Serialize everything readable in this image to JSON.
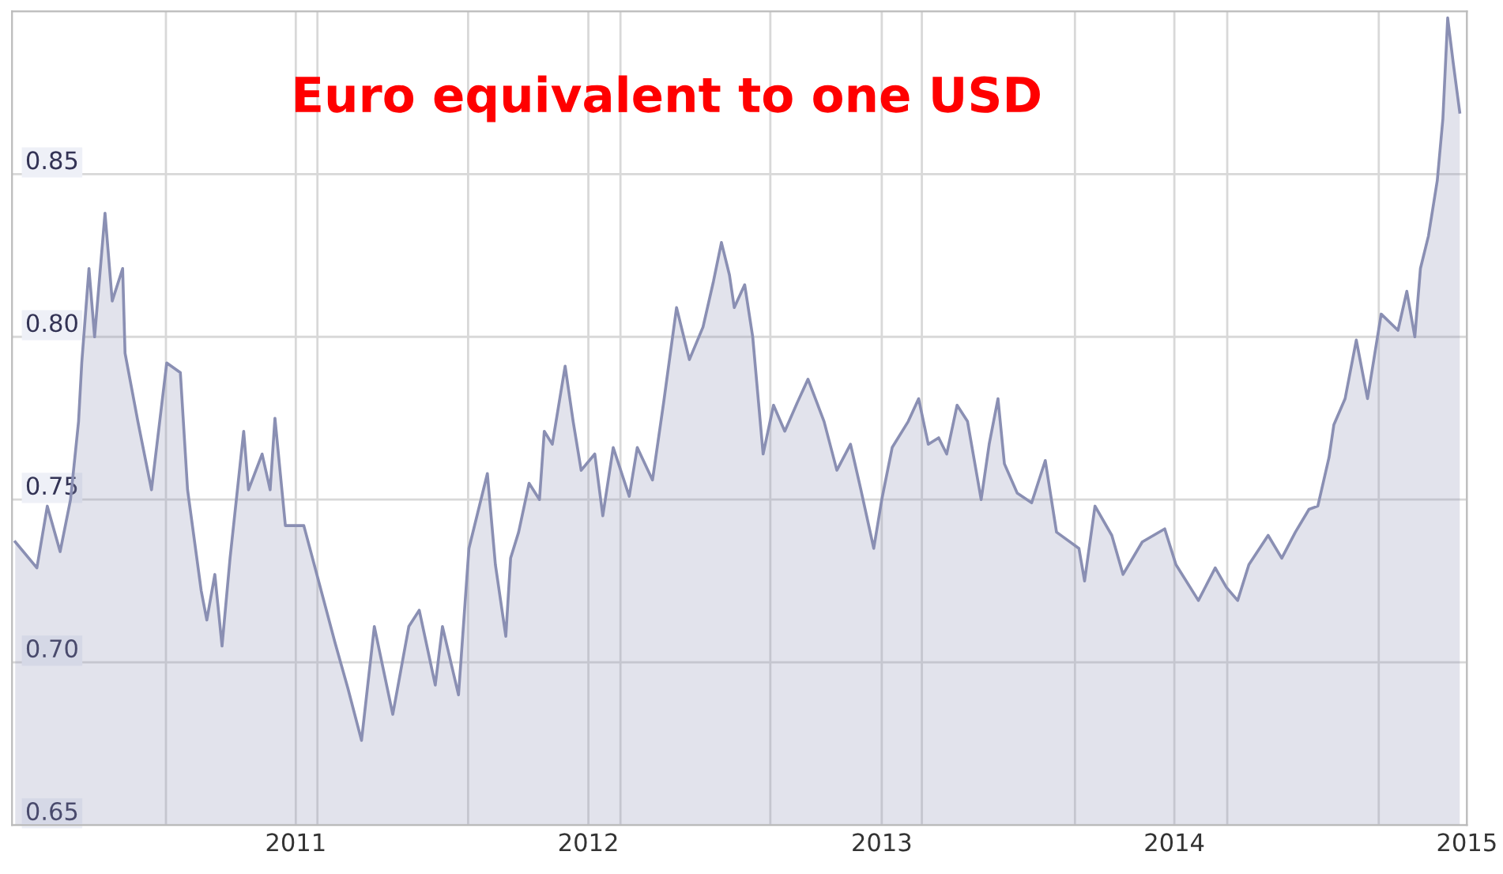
{
  "chart_data": {
    "type": "area",
    "title": "Euro equivalent to one USD",
    "x": [
      "2010-01-16",
      "2010-02-12",
      "2010-02-25",
      "2010-03-13",
      "2010-03-26",
      "2010-04-05",
      "2010-04-09",
      "2010-04-18",
      "2010-04-25",
      "2010-05-08",
      "2010-05-17",
      "2010-05-30",
      "2010-06-02",
      "2010-06-18",
      "2010-07-05",
      "2010-07-24",
      "2010-08-10",
      "2010-08-19",
      "2010-09-05",
      "2010-09-12",
      "2010-09-22",
      "2010-10-01",
      "2010-10-11",
      "2010-10-28",
      "2010-11-03",
      "2010-11-20",
      "2010-11-30",
      "2010-12-06",
      "2010-12-19",
      "2011-01-11",
      "2011-01-24",
      "2011-02-19",
      "2011-03-07",
      "2011-03-24",
      "2011-04-09",
      "2011-05-02",
      "2011-05-22",
      "2011-06-04",
      "2011-06-24",
      "2011-07-03",
      "2011-07-23",
      "2011-08-05",
      "2011-08-28",
      "2011-09-07",
      "2011-09-20",
      "2011-09-26",
      "2011-10-06",
      "2011-10-19",
      "2011-11-01",
      "2011-11-07",
      "2011-11-17",
      "2011-12-03",
      "2011-12-13",
      "2011-12-23",
      "2012-01-09",
      "2012-01-19",
      "2012-02-01",
      "2012-02-21",
      "2012-03-02",
      "2012-03-21",
      "2012-04-04",
      "2012-04-20",
      "2012-05-06",
      "2012-05-23",
      "2012-06-05",
      "2012-06-15",
      "2012-06-25",
      "2012-07-01",
      "2012-07-14",
      "2012-07-24",
      "2012-08-06",
      "2012-08-19",
      "2012-09-02",
      "2012-09-18",
      "2012-10-01",
      "2012-10-21",
      "2012-11-06",
      "2012-11-23",
      "2012-12-06",
      "2012-12-22",
      "2013-01-01",
      "2013-01-14",
      "2013-02-03",
      "2013-02-16",
      "2013-02-28",
      "2013-03-13",
      "2013-03-23",
      "2013-04-05",
      "2013-04-18",
      "2013-05-05",
      "2013-05-15",
      "2013-05-26",
      "2013-06-03",
      "2013-06-19",
      "2013-07-07",
      "2013-07-24",
      "2013-08-07",
      "2013-09-04",
      "2013-09-11",
      "2013-09-24",
      "2013-10-15",
      "2013-10-29",
      "2013-11-22",
      "2013-12-06",
      "2013-12-20",
      "2014-01-03",
      "2014-01-31",
      "2014-02-21",
      "2014-03-07",
      "2014-03-21",
      "2014-04-04",
      "2014-04-28",
      "2014-05-15",
      "2014-06-01",
      "2014-06-18",
      "2014-06-29",
      "2014-07-13",
      "2014-07-19",
      "2014-08-02",
      "2014-08-16",
      "2014-08-30",
      "2014-09-16",
      "2014-10-07",
      "2014-10-18",
      "2014-10-28",
      "2014-11-04",
      "2014-11-14",
      "2014-11-25",
      "2014-12-02",
      "2014-12-08",
      "2014-12-15",
      "2014-12-23"
    ],
    "series": [
      {
        "color": "#8a8fb3",
        "values": [
          0.737,
          0.729,
          0.748,
          0.734,
          0.75,
          0.774,
          0.792,
          0.821,
          0.8,
          0.838,
          0.811,
          0.821,
          0.795,
          0.774,
          0.753,
          0.792,
          0.789,
          0.753,
          0.722,
          0.713,
          0.727,
          0.705,
          0.732,
          0.771,
          0.753,
          0.764,
          0.753,
          0.775,
          0.742,
          0.742,
          0.73,
          0.706,
          0.692,
          0.676,
          0.711,
          0.684,
          0.711,
          0.716,
          0.693,
          0.711,
          0.69,
          0.735,
          0.758,
          0.73,
          0.708,
          0.732,
          0.74,
          0.755,
          0.75,
          0.771,
          0.767,
          0.791,
          0.774,
          0.759,
          0.764,
          0.745,
          0.766,
          0.751,
          0.766,
          0.756,
          0.78,
          0.809,
          0.793,
          0.803,
          0.817,
          0.829,
          0.819,
          0.809,
          0.816,
          0.8,
          0.764,
          0.779,
          0.771,
          0.78,
          0.787,
          0.774,
          0.759,
          0.767,
          0.753,
          0.735,
          0.75,
          0.766,
          0.774,
          0.781,
          0.767,
          0.769,
          0.764,
          0.779,
          0.774,
          0.75,
          0.767,
          0.781,
          0.761,
          0.752,
          0.749,
          0.762,
          0.74,
          0.735,
          0.725,
          0.748,
          0.739,
          0.727,
          0.737,
          0.739,
          0.741,
          0.73,
          0.719,
          0.729,
          0.723,
          0.719,
          0.73,
          0.739,
          0.732,
          0.74,
          0.747,
          0.748,
          0.763,
          0.773,
          0.781,
          0.799,
          0.781,
          0.807,
          0.802,
          0.814,
          0.8,
          0.821,
          0.831,
          0.848,
          0.867,
          0.898,
          0.884,
          0.869
        ]
      }
    ],
    "xlim": [
      "2010-01-12",
      "2015-01-01"
    ],
    "xticks": [
      {
        "value": "2010-07-23",
        "label": null
      },
      {
        "value": "2011-01-01",
        "label": "2011"
      },
      {
        "value": "2011-01-28",
        "label": null
      },
      {
        "value": "2011-08-04",
        "label": null
      },
      {
        "value": "2012-01-01",
        "label": "2012"
      },
      {
        "value": "2012-02-10",
        "label": null
      },
      {
        "value": "2012-08-15",
        "label": null
      },
      {
        "value": "2013-01-01",
        "label": "2013"
      },
      {
        "value": "2013-02-20",
        "label": null
      },
      {
        "value": "2013-08-30",
        "label": null
      },
      {
        "value": "2014-01-01",
        "label": "2014"
      },
      {
        "value": "2014-03-08",
        "label": null
      },
      {
        "value": "2014-09-13",
        "label": null
      },
      {
        "value": "2015-01-01",
        "label": "2015"
      }
    ],
    "ylim": [
      0.65,
      0.9
    ],
    "yticks": [
      {
        "value": 0.65,
        "label": "0.65"
      },
      {
        "value": 0.7,
        "label": "0.70"
      },
      {
        "value": 0.75,
        "label": "0.75"
      },
      {
        "value": 0.8,
        "label": "0.80"
      },
      {
        "value": 0.85,
        "label": "0.85"
      }
    ],
    "grid": true
  }
}
